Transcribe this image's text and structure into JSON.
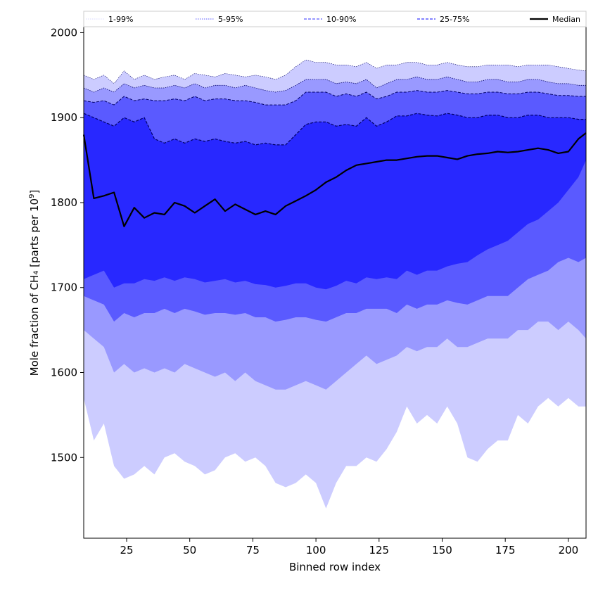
{
  "chart_data": {
    "type": "area",
    "xlabel": "Binned row index",
    "ylabel_prefix": "Mole fraction of CH₄ [parts per 10",
    "ylabel_exp": "9",
    "ylabel_suffix": "]",
    "xlim": [
      8,
      207
    ],
    "ylim": [
      1405,
      2007
    ],
    "x_ticks": [
      25,
      50,
      75,
      100,
      125,
      150,
      175,
      200
    ],
    "y_ticks": [
      1500,
      1600,
      1700,
      1800,
      1900,
      2000
    ],
    "grid": false,
    "legend_position": "top",
    "x": [
      8,
      12,
      16,
      20,
      24,
      28,
      32,
      36,
      40,
      44,
      48,
      52,
      56,
      60,
      64,
      68,
      72,
      76,
      80,
      84,
      88,
      92,
      96,
      100,
      104,
      108,
      112,
      116,
      120,
      124,
      128,
      132,
      136,
      140,
      144,
      148,
      152,
      156,
      160,
      164,
      168,
      172,
      176,
      180,
      184,
      188,
      192,
      196,
      200,
      204,
      207
    ],
    "bands": [
      {
        "name": "1-99%",
        "color": "#ccccff",
        "lower": [
          1570,
          1520,
          1540,
          1490,
          1475,
          1480,
          1490,
          1480,
          1500,
          1505,
          1495,
          1490,
          1480,
          1485,
          1500,
          1505,
          1495,
          1500,
          1490,
          1470,
          1465,
          1470,
          1480,
          1470,
          1440,
          1470,
          1490,
          1490,
          1500,
          1495,
          1510,
          1530,
          1560,
          1540,
          1550,
          1540,
          1560,
          1540,
          1500,
          1495,
          1510,
          1520,
          1520,
          1550,
          1540,
          1560,
          1570,
          1560,
          1570,
          1560,
          1560
        ],
        "upper": [
          1950,
          1945,
          1950,
          1940,
          1955,
          1945,
          1950,
          1945,
          1948,
          1950,
          1945,
          1952,
          1950,
          1948,
          1952,
          1950,
          1948,
          1950,
          1948,
          1945,
          1950,
          1960,
          1968,
          1965,
          1965,
          1962,
          1962,
          1960,
          1965,
          1958,
          1962,
          1962,
          1965,
          1965,
          1962,
          1962,
          1965,
          1962,
          1960,
          1960,
          1962,
          1962,
          1962,
          1960,
          1962,
          1962,
          1962,
          1960,
          1958,
          1956,
          1955
        ]
      },
      {
        "name": "5-95%",
        "color": "#9999ff",
        "lower": [
          1650,
          1640,
          1630,
          1600,
          1610,
          1600,
          1605,
          1600,
          1605,
          1600,
          1610,
          1605,
          1600,
          1595,
          1600,
          1590,
          1600,
          1590,
          1585,
          1580,
          1580,
          1585,
          1590,
          1585,
          1580,
          1590,
          1600,
          1610,
          1620,
          1610,
          1615,
          1620,
          1630,
          1625,
          1630,
          1630,
          1640,
          1630,
          1630,
          1635,
          1640,
          1640,
          1640,
          1650,
          1650,
          1660,
          1660,
          1650,
          1660,
          1650,
          1640
        ],
        "upper": [
          1935,
          1930,
          1935,
          1930,
          1940,
          1935,
          1938,
          1935,
          1935,
          1938,
          1935,
          1940,
          1935,
          1938,
          1938,
          1935,
          1938,
          1935,
          1932,
          1930,
          1932,
          1938,
          1945,
          1945,
          1945,
          1940,
          1942,
          1940,
          1945,
          1935,
          1940,
          1945,
          1945,
          1948,
          1945,
          1945,
          1948,
          1945,
          1942,
          1942,
          1945,
          1945,
          1942,
          1942,
          1945,
          1945,
          1942,
          1940,
          1940,
          1938,
          1938
        ]
      },
      {
        "name": "10-90%",
        "color": "#5a5aff",
        "lower": [
          1690,
          1685,
          1680,
          1660,
          1670,
          1665,
          1670,
          1670,
          1675,
          1670,
          1675,
          1672,
          1668,
          1670,
          1670,
          1668,
          1670,
          1665,
          1665,
          1660,
          1662,
          1665,
          1665,
          1662,
          1660,
          1665,
          1670,
          1670,
          1675,
          1675,
          1675,
          1670,
          1680,
          1675,
          1680,
          1680,
          1685,
          1682,
          1680,
          1685,
          1690,
          1690,
          1690,
          1700,
          1710,
          1715,
          1720,
          1730,
          1735,
          1730,
          1735
        ],
        "upper": [
          1920,
          1918,
          1920,
          1915,
          1925,
          1920,
          1922,
          1920,
          1920,
          1922,
          1920,
          1925,
          1920,
          1922,
          1922,
          1920,
          1920,
          1918,
          1915,
          1915,
          1915,
          1920,
          1930,
          1930,
          1930,
          1925,
          1928,
          1925,
          1930,
          1922,
          1925,
          1930,
          1930,
          1932,
          1930,
          1930,
          1932,
          1930,
          1928,
          1928,
          1930,
          1930,
          1928,
          1928,
          1930,
          1930,
          1928,
          1926,
          1926,
          1925,
          1925
        ]
      },
      {
        "name": "25-75%",
        "color": "#2828ff",
        "lower": [
          1710,
          1715,
          1720,
          1700,
          1705,
          1705,
          1710,
          1708,
          1712,
          1708,
          1712,
          1710,
          1706,
          1708,
          1710,
          1706,
          1708,
          1704,
          1703,
          1700,
          1702,
          1705,
          1705,
          1700,
          1698,
          1702,
          1708,
          1705,
          1712,
          1710,
          1712,
          1710,
          1720,
          1715,
          1720,
          1720,
          1725,
          1728,
          1730,
          1738,
          1745,
          1750,
          1755,
          1765,
          1775,
          1780,
          1790,
          1800,
          1815,
          1830,
          1850
        ],
        "upper": [
          1905,
          1900,
          1895,
          1890,
          1900,
          1895,
          1900,
          1875,
          1870,
          1875,
          1870,
          1875,
          1872,
          1875,
          1872,
          1870,
          1872,
          1868,
          1870,
          1868,
          1868,
          1880,
          1892,
          1895,
          1895,
          1890,
          1892,
          1890,
          1900,
          1890,
          1895,
          1902,
          1902,
          1905,
          1903,
          1902,
          1905,
          1903,
          1900,
          1900,
          1903,
          1903,
          1900,
          1900,
          1903,
          1903,
          1900,
          1900,
          1900,
          1898,
          1898
        ]
      }
    ],
    "median": {
      "name": "Median",
      "color": "#000000",
      "values": [
        1880,
        1805,
        1808,
        1812,
        1772,
        1794,
        1782,
        1788,
        1786,
        1800,
        1796,
        1788,
        1796,
        1804,
        1790,
        1798,
        1792,
        1786,
        1790,
        1786,
        1796,
        1802,
        1808,
        1815,
        1824,
        1830,
        1838,
        1844,
        1846,
        1848,
        1850,
        1850,
        1852,
        1854,
        1855,
        1855,
        1853,
        1851,
        1855,
        1857,
        1858,
        1860,
        1859,
        1860,
        1862,
        1864,
        1862,
        1858,
        1860,
        1875,
        1882
      ]
    }
  }
}
